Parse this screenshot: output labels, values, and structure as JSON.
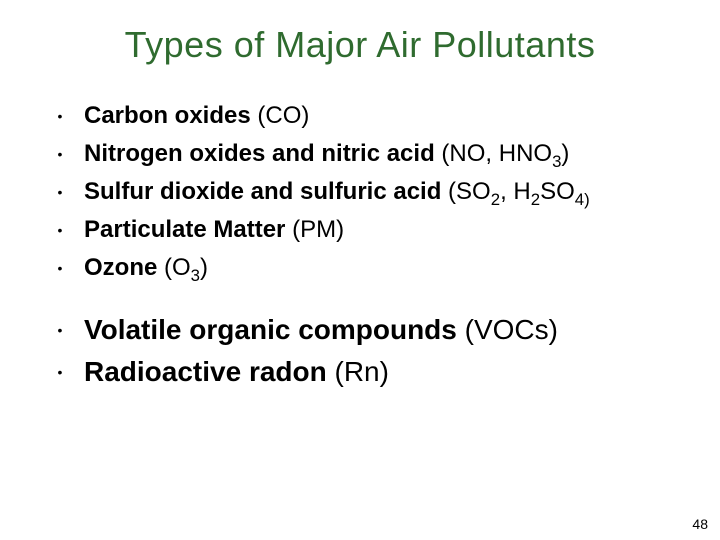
{
  "title": {
    "text": "Types of Major Air Pollutants",
    "color": "#2f6b2f",
    "fontsize": 36
  },
  "bullet_glyph": "•",
  "bullet_color": "#000000",
  "groups": [
    {
      "fontsize": 24,
      "items": [
        {
          "bold": "Carbon oxides",
          "rest": " (CO)"
        },
        {
          "bold": "Nitrogen oxides and nitric acid",
          "rest": " (NO, HNO",
          "sub": "3",
          "rest2": ")"
        },
        {
          "bold": "Sulfur dioxide and sulfuric acid",
          "rest": " (SO",
          "sub": "2",
          "rest2": ", H",
          "sub2": "2",
          "rest3": "SO",
          "sub3": "4)",
          "rest4": ""
        },
        {
          "bold": "Particulate Matter",
          "rest": " (PM)"
        },
        {
          "bold": "Ozone",
          "rest": " (O",
          "sub": "3",
          "rest2": ")"
        }
      ]
    },
    {
      "fontsize": 28,
      "items": [
        {
          "bold": "Volatile organic compounds",
          "rest": " (VOCs)"
        },
        {
          "bold": "Radioactive radon",
          "rest": " (Rn)"
        }
      ]
    }
  ],
  "page_number": "48",
  "background_color": "#ffffff"
}
